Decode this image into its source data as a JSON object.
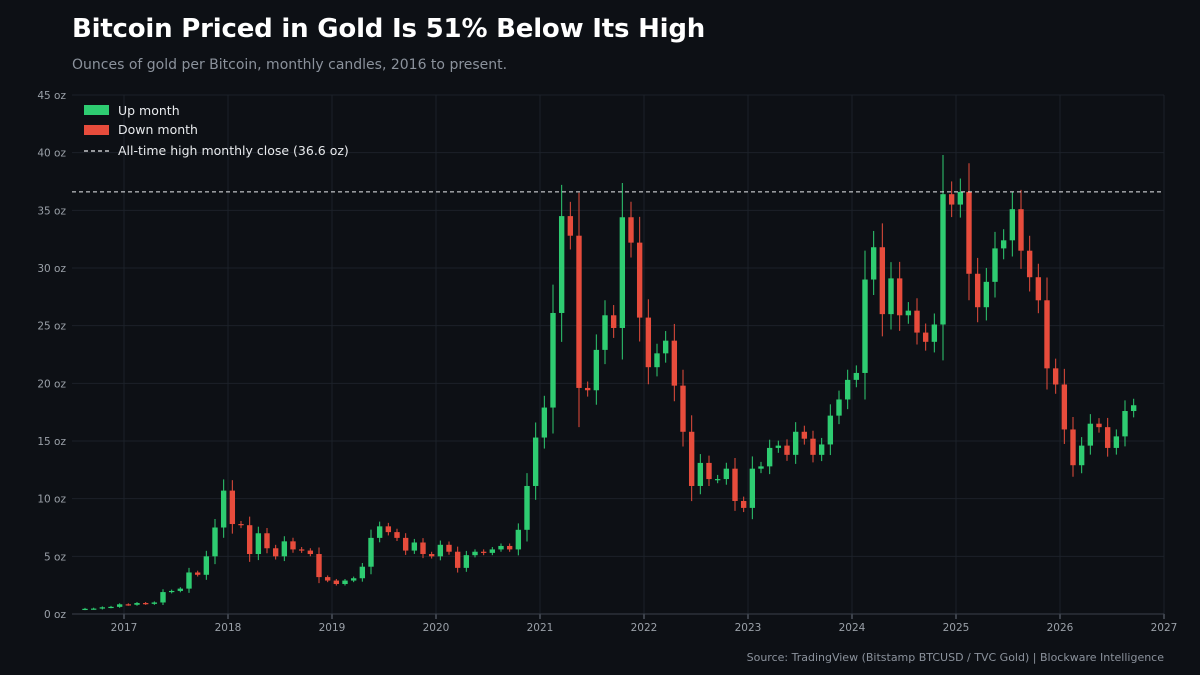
{
  "header": {
    "title": "Bitcoin Priced in Gold Is 51% Below Its High",
    "subtitle": "Ounces of gold per Bitcoin, monthly candles, 2016 to present."
  },
  "footer": {
    "source": "Source: TradingView (Bitstamp BTCUSD / TVC Gold)  |  Blockware Intelligence"
  },
  "colors": {
    "up": "#2ecc71",
    "down": "#e74c3c",
    "ath_line": "#e8eaed",
    "grid": "#1c2129",
    "background": "#0d1015"
  },
  "chart_data": {
    "type": "candlestick",
    "title": "Bitcoin Priced in Gold Is 51% Below Its High",
    "ylabel": "",
    "y_unit": " oz",
    "ylim": [
      0,
      45
    ],
    "yticks": [
      0,
      5,
      10,
      15,
      20,
      25,
      30,
      35,
      40,
      45
    ],
    "xlim": [
      "2016-07",
      "2027-01"
    ],
    "xticks": [
      "2017",
      "2018",
      "2019",
      "2020",
      "2021",
      "2022",
      "2023",
      "2024",
      "2025",
      "2026",
      "2027"
    ],
    "grid": true,
    "legend_position": "top-left",
    "legend": {
      "up": "Up month",
      "down": "Down month",
      "ath": "All-time high monthly close (36.6 oz)"
    },
    "ath_value": 36.6,
    "closes": [
      [
        "2016-08",
        0.45
      ],
      [
        "2016-09",
        0.47
      ],
      [
        "2016-10",
        0.58
      ],
      [
        "2016-11",
        0.62
      ],
      [
        "2016-12",
        0.84
      ],
      [
        "2017-01",
        0.8
      ],
      [
        "2017-02",
        0.95
      ],
      [
        "2017-03",
        0.88
      ],
      [
        "2017-04",
        1.0
      ],
      [
        "2017-05",
        1.9
      ],
      [
        "2017-06",
        2.0
      ],
      [
        "2017-07",
        2.2
      ],
      [
        "2017-08",
        3.6
      ],
      [
        "2017-09",
        3.4
      ],
      [
        "2017-10",
        5.0
      ],
      [
        "2017-11",
        7.5
      ],
      [
        "2017-12",
        10.7
      ],
      [
        "2018-01",
        7.8
      ],
      [
        "2018-02",
        7.7
      ],
      [
        "2018-03",
        5.2
      ],
      [
        "2018-04",
        7.0
      ],
      [
        "2018-05",
        5.7
      ],
      [
        "2018-06",
        5.0
      ],
      [
        "2018-07",
        6.3
      ],
      [
        "2018-08",
        5.6
      ],
      [
        "2018-09",
        5.5
      ],
      [
        "2018-10",
        5.2
      ],
      [
        "2018-11",
        3.2
      ],
      [
        "2018-12",
        2.9
      ],
      [
        "2019-01",
        2.6
      ],
      [
        "2019-02",
        2.9
      ],
      [
        "2019-03",
        3.1
      ],
      [
        "2019-04",
        4.1
      ],
      [
        "2019-05",
        6.6
      ],
      [
        "2019-06",
        7.6
      ],
      [
        "2019-07",
        7.1
      ],
      [
        "2019-08",
        6.6
      ],
      [
        "2019-09",
        5.5
      ],
      [
        "2019-10",
        6.2
      ],
      [
        "2019-11",
        5.2
      ],
      [
        "2019-12",
        5.0
      ],
      [
        "2020-01",
        6.0
      ],
      [
        "2020-02",
        5.4
      ],
      [
        "2020-03",
        4.0
      ],
      [
        "2020-04",
        5.1
      ],
      [
        "2020-05",
        5.4
      ],
      [
        "2020-06",
        5.3
      ],
      [
        "2020-07",
        5.6
      ],
      [
        "2020-08",
        5.9
      ],
      [
        "2020-09",
        5.6
      ],
      [
        "2020-10",
        7.3
      ],
      [
        "2020-11",
        11.1
      ],
      [
        "2020-12",
        15.3
      ],
      [
        "2021-01",
        17.9
      ],
      [
        "2021-02",
        26.1
      ],
      [
        "2021-03",
        34.5
      ],
      [
        "2021-04",
        32.8
      ],
      [
        "2021-05",
        19.6
      ],
      [
        "2021-06",
        19.4
      ],
      [
        "2021-07",
        22.9
      ],
      [
        "2021-08",
        25.9
      ],
      [
        "2021-09",
        24.8
      ],
      [
        "2021-10",
        34.4
      ],
      [
        "2021-11",
        32.2
      ],
      [
        "2021-12",
        25.7
      ],
      [
        "2022-01",
        21.4
      ],
      [
        "2022-02",
        22.6
      ],
      [
        "2022-03",
        23.7
      ],
      [
        "2022-04",
        19.8
      ],
      [
        "2022-05",
        15.8
      ],
      [
        "2022-06",
        11.1
      ],
      [
        "2022-07",
        13.1
      ],
      [
        "2022-08",
        11.7
      ],
      [
        "2022-09",
        11.7
      ],
      [
        "2022-10",
        12.6
      ],
      [
        "2022-11",
        9.8
      ],
      [
        "2022-12",
        9.2
      ],
      [
        "2023-01",
        12.6
      ],
      [
        "2023-02",
        12.8
      ],
      [
        "2023-03",
        14.4
      ],
      [
        "2023-04",
        14.6
      ],
      [
        "2023-05",
        13.8
      ],
      [
        "2023-06",
        15.8
      ],
      [
        "2023-07",
        15.2
      ],
      [
        "2023-08",
        13.8
      ],
      [
        "2023-09",
        14.7
      ],
      [
        "2023-10",
        17.2
      ],
      [
        "2023-11",
        18.6
      ],
      [
        "2023-12",
        20.3
      ],
      [
        "2024-01",
        20.9
      ],
      [
        "2024-02",
        29.0
      ],
      [
        "2024-03",
        31.8
      ],
      [
        "2024-04",
        26.0
      ],
      [
        "2024-05",
        29.1
      ],
      [
        "2024-06",
        25.9
      ],
      [
        "2024-07",
        26.3
      ],
      [
        "2024-08",
        24.4
      ],
      [
        "2024-09",
        23.6
      ],
      [
        "2024-10",
        25.1
      ],
      [
        "2024-11",
        36.4
      ],
      [
        "2024-12",
        35.5
      ],
      [
        "2025-01",
        36.6
      ],
      [
        "2025-02",
        29.5
      ],
      [
        "2025-03",
        26.6
      ],
      [
        "2025-04",
        28.8
      ],
      [
        "2025-05",
        31.7
      ],
      [
        "2025-06",
        32.4
      ],
      [
        "2025-07",
        35.1
      ],
      [
        "2025-08",
        31.5
      ],
      [
        "2025-09",
        29.2
      ],
      [
        "2025-10",
        27.2
      ],
      [
        "2025-11",
        21.3
      ],
      [
        "2025-12",
        19.9
      ],
      [
        "2026-01",
        16.0
      ],
      [
        "2026-02",
        12.9
      ],
      [
        "2026-03",
        14.6
      ],
      [
        "2026-04",
        16.5
      ],
      [
        "2026-05",
        16.2
      ],
      [
        "2026-06",
        14.4
      ],
      [
        "2026-07",
        15.4
      ],
      [
        "2026-08",
        17.6
      ],
      [
        "2026-09",
        18.1
      ]
    ]
  }
}
